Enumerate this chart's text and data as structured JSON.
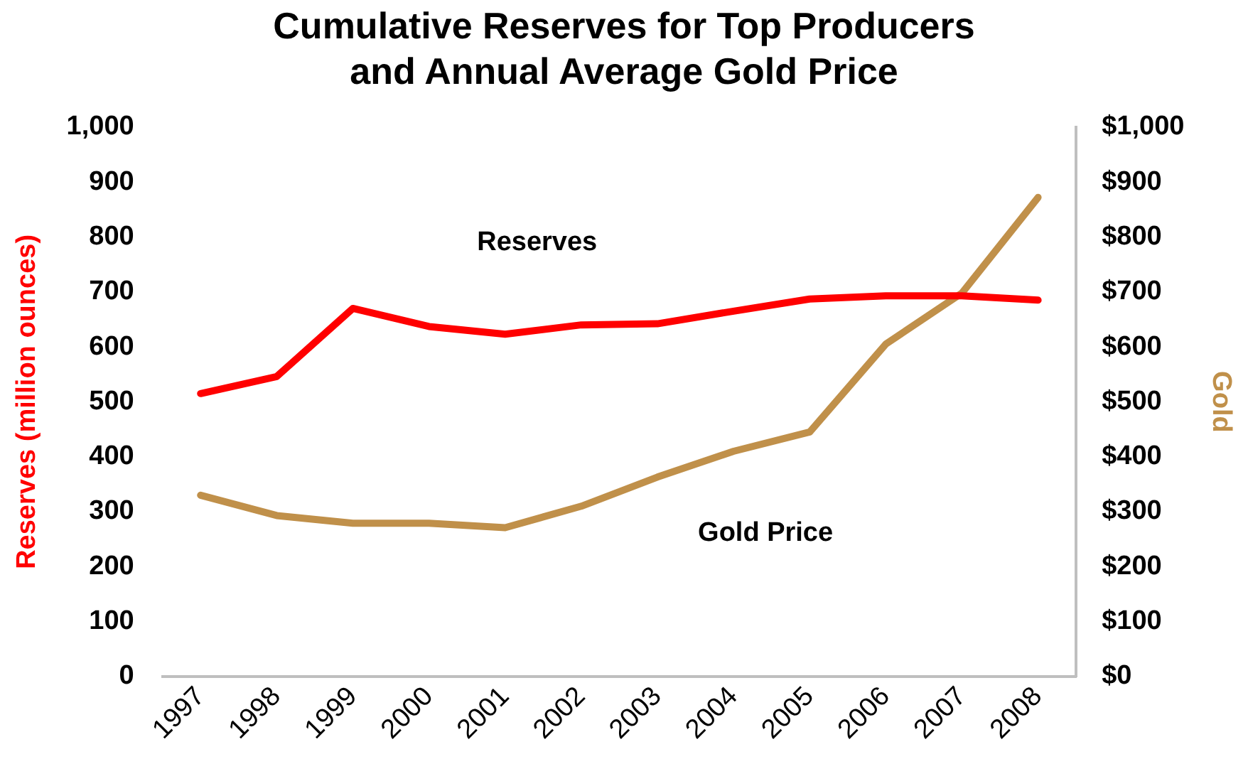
{
  "chart_data": {
    "type": "line",
    "title": "Cumulative Reserves for Top Producers and Annual Average Gold Price",
    "ylabel": "Reserves (million ounces)",
    "y2label": "Gold",
    "categories": [
      "1997",
      "1998",
      "1999",
      "2000",
      "2001",
      "2002",
      "2003",
      "2004",
      "2005",
      "2006",
      "2007",
      "2008"
    ],
    "series": [
      {
        "color": "#ff0000",
        "values": [
          515,
          546,
          670,
          637,
          623,
          640,
          642,
          665,
          687,
          693,
          693,
          685
        ]
      },
      {
        "color": "#c0904a",
        "axis": "y2",
        "values": [
          330,
          293,
          279,
          279,
          271,
          310,
          363,
          410,
          445,
          605,
          698,
          872
        ]
      }
    ],
    "ylim": [
      0,
      1000
    ],
    "yticks": [
      0,
      100,
      200,
      300,
      400,
      500,
      600,
      700,
      800,
      900,
      {
        "value": 1000,
        "label": "1,000"
      }
    ],
    "y2lim": [
      0,
      1000
    ],
    "y2ticks": [
      {
        "value": 0,
        "label": "$0"
      },
      {
        "value": 100,
        "label": "$100"
      },
      {
        "value": 200,
        "label": "$200"
      },
      {
        "value": 300,
        "label": "$300"
      },
      {
        "value": 400,
        "label": "$400"
      },
      {
        "value": 500,
        "label": "$500"
      },
      {
        "value": 600,
        "label": "$600"
      },
      {
        "value": 700,
        "label": "$700"
      },
      {
        "value": 800,
        "label": "$800"
      },
      {
        "value": 900,
        "label": "$900"
      },
      {
        "value": 1000,
        "label": "$1,000"
      }
    ],
    "annotations": [
      "Reserves",
      "Gold Price"
    ],
    "grid": false,
    "legend": false,
    "marker": "none",
    "line_style": "solid"
  }
}
